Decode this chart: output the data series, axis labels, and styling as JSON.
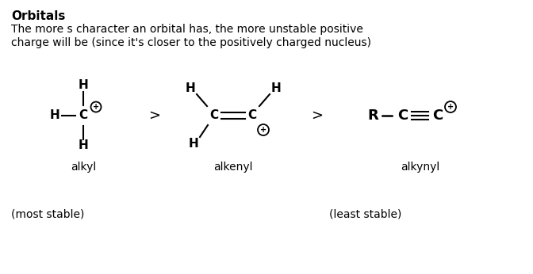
{
  "title": "Orbitals",
  "subtitle_line1": "The more s character an orbital has, the more unstable positive",
  "subtitle_line2": "charge will be (since it's closer to the positively charged nucleus)",
  "background_color": "#ffffff",
  "text_color": "#000000",
  "alkyl_label": "alkyl",
  "alkenyl_label": "alkenyl",
  "alkynyl_label": "alkynyl",
  "most_stable": "(most stable)",
  "least_stable": "(least stable)"
}
